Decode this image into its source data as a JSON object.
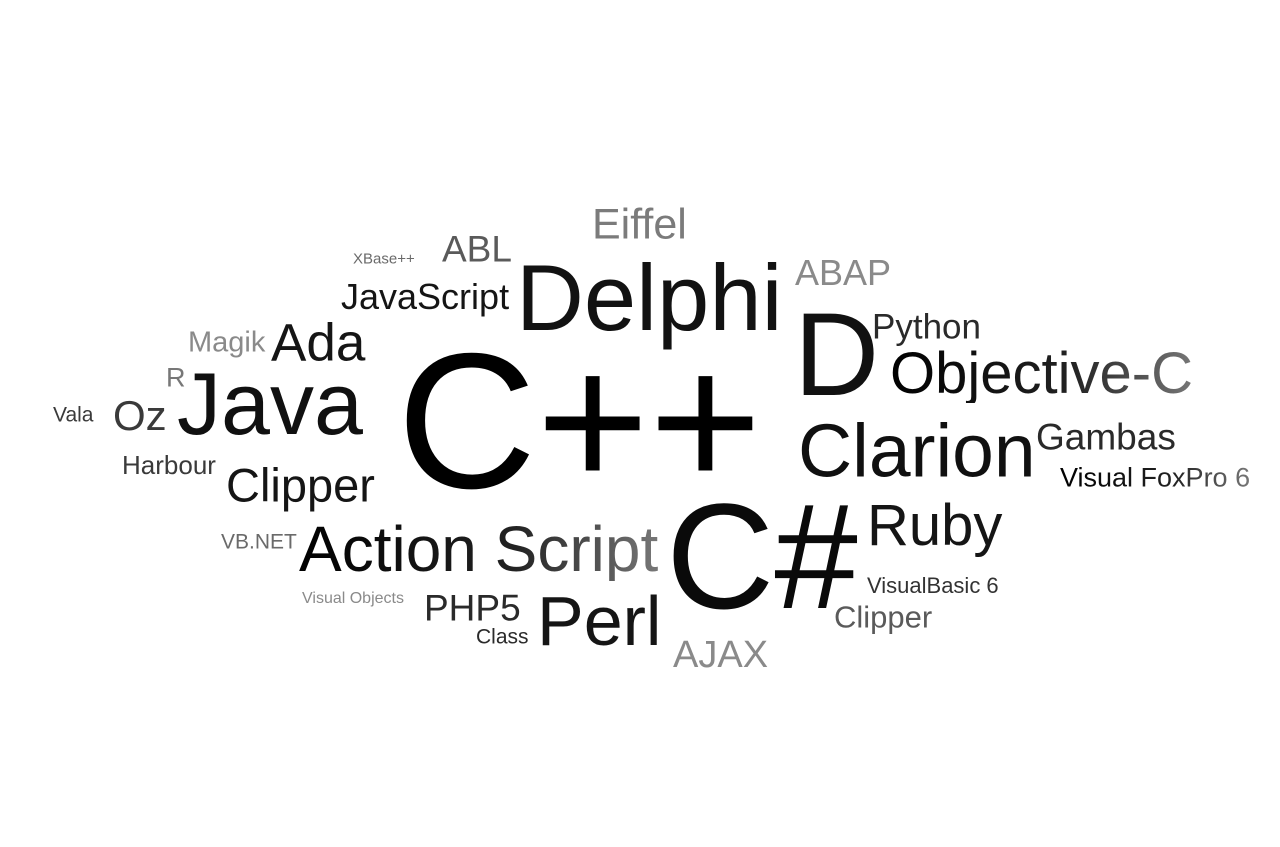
{
  "words": [
    {
      "key": "eiffel",
      "text": "Eiffel",
      "color": "#7b7b7b"
    },
    {
      "key": "xbase",
      "text": "XBase++",
      "color": "#6a6a6a"
    },
    {
      "key": "abl",
      "text": "ABL",
      "color": "#5a5a5a"
    },
    {
      "key": "abap",
      "text": "ABAP",
      "color": "#8a8a8a"
    },
    {
      "key": "delphi",
      "text": "Delphi",
      "color": "#121212"
    },
    {
      "key": "javascript",
      "text": "JavaScript",
      "color": "#151515"
    },
    {
      "key": "python",
      "text": "Python",
      "color": "#2a2a2a"
    },
    {
      "key": "magik",
      "text": "Magik",
      "color": "#8a8a8a"
    },
    {
      "key": "ada",
      "text": "Ada",
      "color": "#151515"
    },
    {
      "key": "d",
      "text": "D",
      "color": "#111111"
    },
    {
      "key": "r",
      "text": "R",
      "color": "#777777"
    },
    {
      "key": "objective-c",
      "text": "Objective-C",
      "color": "#1a1a1a"
    },
    {
      "key": "cpp",
      "text": "C++",
      "color": "#000000"
    },
    {
      "key": "java",
      "text": "Java",
      "color": "#101010"
    },
    {
      "key": "oz",
      "text": "Oz",
      "color": "#3a3a3a"
    },
    {
      "key": "vala",
      "text": "Vala",
      "color": "#3a3a3a"
    },
    {
      "key": "clarion",
      "text": "Clarion",
      "color": "#101010"
    },
    {
      "key": "gambas",
      "text": "Gambas",
      "color": "#2a2a2a"
    },
    {
      "key": "harbour",
      "text": "Harbour",
      "color": "#3a3a3a"
    },
    {
      "key": "visual-foxpro",
      "text": "Visual FoxPro 6",
      "color": "#444444"
    },
    {
      "key": "clipper-left",
      "text": "Clipper",
      "color": "#151515"
    },
    {
      "key": "ruby",
      "text": "Ruby",
      "color": "#151515"
    },
    {
      "key": "csharp",
      "text": "C#",
      "color": "#0a0a0a"
    },
    {
      "key": "vbnet",
      "text": "VB.NET",
      "color": "#6a6a6a"
    },
    {
      "key": "action-script",
      "text": "Action Script",
      "color": "#151515"
    },
    {
      "key": "visualbasic",
      "text": "VisualBasic 6",
      "color": "#333333"
    },
    {
      "key": "visual-objects",
      "text": "Visual Objects",
      "color": "#8a8a8a"
    },
    {
      "key": "php5",
      "text": "PHP5",
      "color": "#2a2a2a"
    },
    {
      "key": "perl",
      "text": "Perl",
      "color": "#151515"
    },
    {
      "key": "clipper-right",
      "text": "Clipper",
      "color": "#5a5a5a"
    },
    {
      "key": "class",
      "text": "Class",
      "color": "#2a2a2a"
    },
    {
      "key": "ajax",
      "text": "AJAX",
      "color": "#8a8a8a"
    }
  ]
}
